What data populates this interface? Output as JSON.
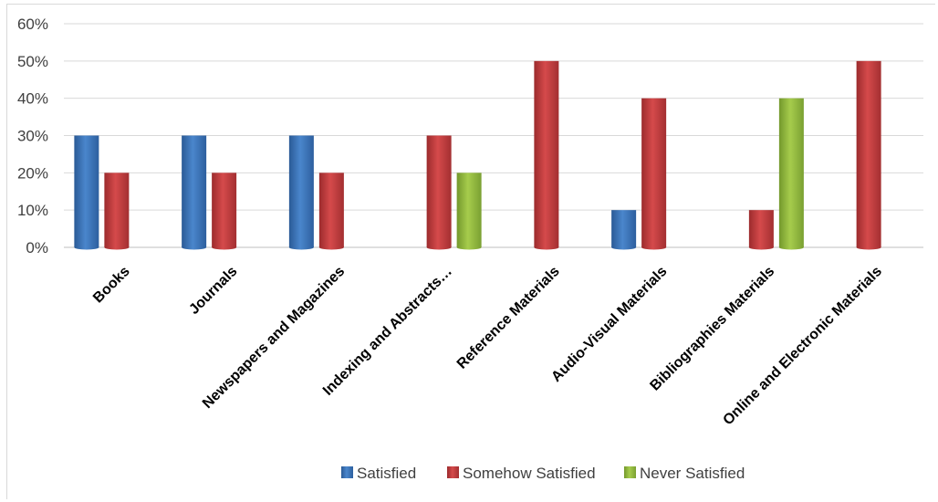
{
  "chart_data": {
    "type": "bar",
    "title": "",
    "xlabel": "",
    "ylabel": "",
    "ylim": [
      0,
      60
    ],
    "y_ticks": [
      "0%",
      "10%",
      "20%",
      "30%",
      "40%",
      "50%",
      "60%"
    ],
    "y_tick_values": [
      0,
      10,
      20,
      30,
      40,
      50,
      60
    ],
    "grid": true,
    "legend_position": "bottom",
    "categories": [
      "Books",
      "Journals",
      "Newspapers and Magazines",
      "Indexing and Abstracts…",
      "Reference Materials",
      "Audio-Visual Materials",
      "Bibliographies Materials",
      "Online and Electronic Materials"
    ],
    "series": [
      {
        "name": "Satisfied",
        "color": "#3a73b8",
        "values": [
          30,
          30,
          30,
          0,
          0,
          10,
          0,
          0
        ]
      },
      {
        "name": "Somehow Satisfied",
        "color": "#c0393b",
        "values": [
          20,
          20,
          20,
          30,
          50,
          40,
          10,
          50
        ]
      },
      {
        "name": "Never Satisfied",
        "color": "#8fba3a",
        "values": [
          0,
          0,
          0,
          20,
          0,
          0,
          40,
          0
        ]
      }
    ]
  }
}
